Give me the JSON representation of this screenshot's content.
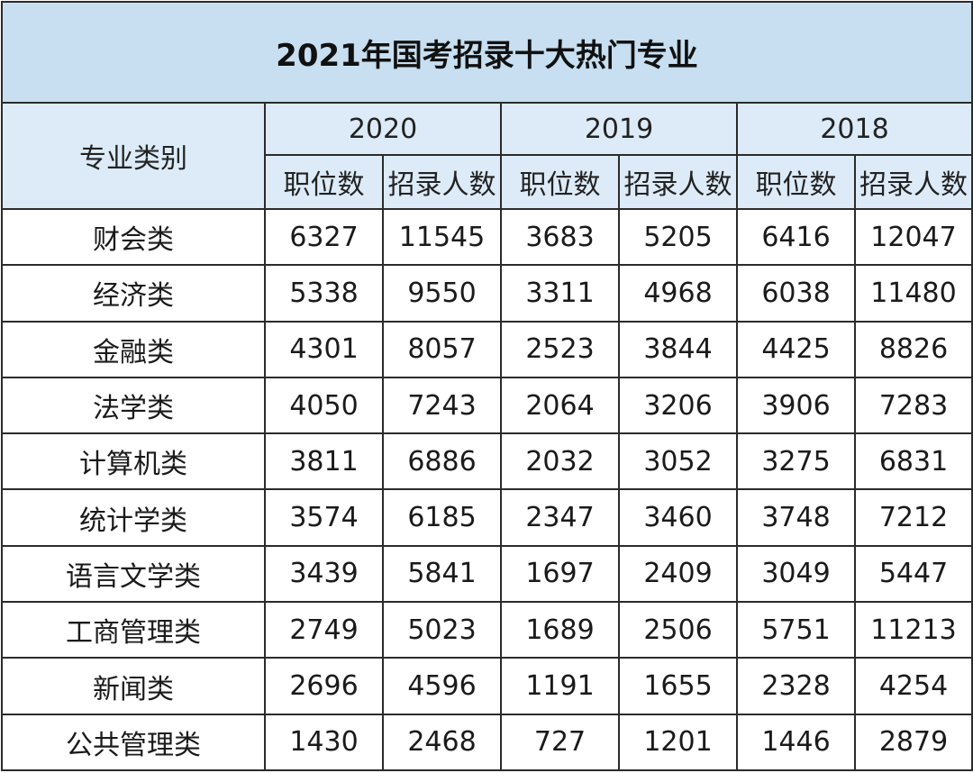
{
  "chart_data": {
    "type": "table",
    "title": "2021年国考招录十大热门专业",
    "row_header": "专业类别",
    "years": [
      "2020",
      "2019",
      "2018"
    ],
    "sub_columns": [
      "职位数",
      "招录人数"
    ],
    "rows": [
      {
        "category": "财会类",
        "values": [
          "6327",
          "11545",
          "3683",
          "5205",
          "6416",
          "12047"
        ]
      },
      {
        "category": "经济类",
        "values": [
          "5338",
          "9550",
          "3311",
          "4968",
          "6038",
          "11480"
        ]
      },
      {
        "category": "金融类",
        "values": [
          "4301",
          "8057",
          "2523",
          "3844",
          "4425",
          "8826"
        ]
      },
      {
        "category": "法学类",
        "values": [
          "4050",
          "7243",
          "2064",
          "3206",
          "3906",
          "7283"
        ]
      },
      {
        "category": "计算机类",
        "values": [
          "3811",
          "6886",
          "2032",
          "3052",
          "3275",
          "6831"
        ]
      },
      {
        "category": "统计学类",
        "values": [
          "3574",
          "6185",
          "2347",
          "3460",
          "3748",
          "7212"
        ]
      },
      {
        "category": "语言文学类",
        "values": [
          "3439",
          "5841",
          "1697",
          "2409",
          "3049",
          "5447"
        ]
      },
      {
        "category": "工商管理类",
        "values": [
          "2749",
          "5023",
          "1689",
          "2506",
          "5751",
          "11213"
        ]
      },
      {
        "category": "新闻类",
        "values": [
          "2696",
          "4596",
          "1191",
          "1655",
          "2328",
          "4254"
        ]
      },
      {
        "category": "公共管理类",
        "values": [
          "1430",
          "2468",
          "727",
          "1201",
          "1446",
          "2879"
        ]
      }
    ]
  },
  "colors": {
    "title_bg": "#c7dff0",
    "header_bg": "#dcebf7",
    "border": "#2b2b2b"
  }
}
